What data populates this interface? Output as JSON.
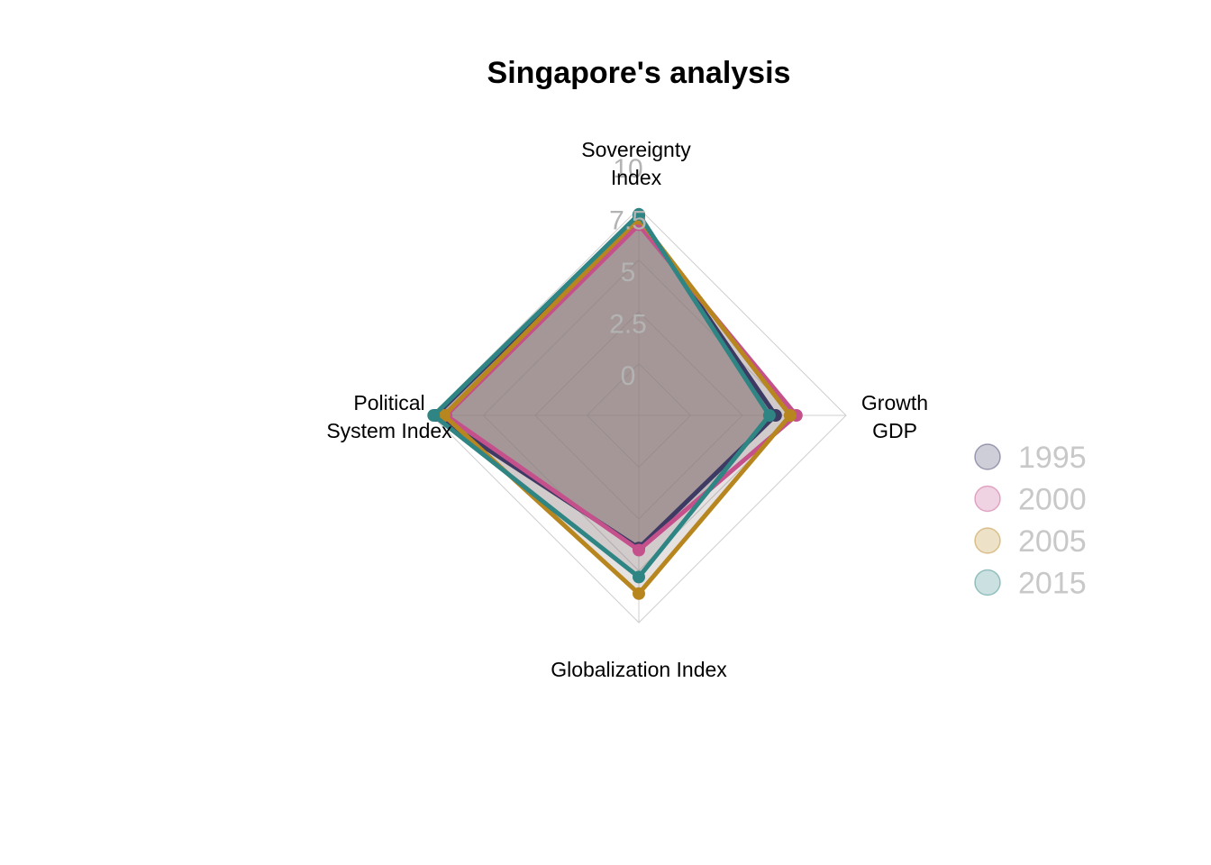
{
  "chart_data": {
    "type": "radar",
    "title": "Singapore's analysis",
    "axes": [
      {
        "lines": [
          "Sovereignty",
          "Index"
        ]
      },
      {
        "lines": [
          "Growth",
          "GDP"
        ]
      },
      {
        "lines": [
          "Globalization Index"
        ]
      },
      {
        "lines": [
          "Political",
          "System Index"
        ]
      }
    ],
    "ticks": [
      "0",
      "2.5",
      "5",
      "7.5",
      "10"
    ],
    "range": [
      0,
      10
    ],
    "grid": true,
    "legend_position": "right",
    "fill_color": "#8c7b7b",
    "series": [
      {
        "name": "1995",
        "color": "#3d3a63",
        "values": [
          9.6,
          6.6,
          6.4,
          9.8
        ]
      },
      {
        "name": "2000",
        "color": "#c4508c",
        "values": [
          9.2,
          7.6,
          6.5,
          9.3
        ]
      },
      {
        "name": "2005",
        "color": "#b8861f",
        "values": [
          9.5,
          7.3,
          8.6,
          9.4
        ]
      },
      {
        "name": "2015",
        "color": "#2e8583",
        "values": [
          9.7,
          6.3,
          7.8,
          9.9
        ]
      }
    ]
  }
}
